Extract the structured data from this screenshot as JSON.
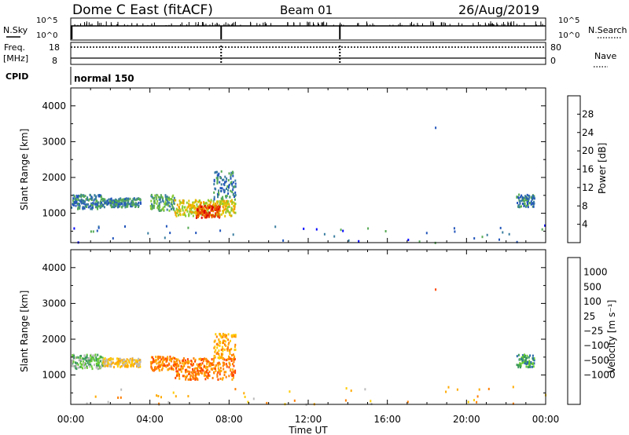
{
  "header": {
    "station": "Dome C East (fitACF)",
    "beam": "Beam 01",
    "date": "26/Aug/2019"
  },
  "status_panels": {
    "nsky_label": "N.Sky",
    "nsky_ticks": [
      "10^5",
      "10^0"
    ],
    "nsearch_label": "N.Search",
    "nsearch_ticks": [
      "10^5",
      "10^0"
    ],
    "freq_label_1": "Freq.",
    "freq_label_2": "[MHz]",
    "freq_ticks": [
      "18",
      "8"
    ],
    "nave_label": "Nave",
    "nave_ticks": [
      "80",
      "0"
    ],
    "cpid_label": "CPID",
    "cpid_value": "normal 150"
  },
  "colors": {
    "power": [
      "#0000ff",
      "#2255bb",
      "#3a7ea0",
      "#55aa55",
      "#88cc33",
      "#e6c200",
      "#f0a000",
      "#f07000",
      "#e84000",
      "#dd0000"
    ],
    "velocity": [
      "#ff0000",
      "#ff4400",
      "#ff7f00",
      "#ffaa00",
      "#ffcc00",
      "#bbbbbb",
      "#66cc33",
      "#3a9a5a",
      "#2a6aaa",
      "#0022ff"
    ]
  },
  "chart_data": [
    {
      "type": "heatmap",
      "name": "power",
      "ylabel": "Slant Range [km]",
      "yticks": [
        "4000",
        "3000",
        "2000",
        "1000"
      ],
      "ylim": [
        180,
        4500
      ],
      "xlim": [
        0,
        24
      ],
      "colorbar_label": "Power [dB]",
      "colorbar_ticks": [
        "28",
        "24",
        "20",
        "16",
        "12",
        "8",
        "4"
      ],
      "colorbar_range": [
        0,
        32
      ],
      "scatter_regions": [
        {
          "t0": 0.0,
          "t1": 1.6,
          "r0": 1150,
          "r1": 1550,
          "level": 2
        },
        {
          "t0": 1.6,
          "t1": 3.5,
          "r0": 1200,
          "r1": 1450,
          "level": 2
        },
        {
          "t0": 4.0,
          "t1": 5.2,
          "r0": 1100,
          "r1": 1550,
          "level": 3
        },
        {
          "t0": 5.2,
          "t1": 8.3,
          "r0": 950,
          "r1": 1400,
          "level": 5
        },
        {
          "t0": 6.3,
          "t1": 7.5,
          "r0": 900,
          "r1": 1250,
          "level": 8
        },
        {
          "t0": 7.2,
          "t1": 8.3,
          "r0": 1400,
          "r1": 2200,
          "level": 2
        },
        {
          "t0": 22.5,
          "t1": 23.4,
          "r0": 1200,
          "r1": 1550,
          "level": 2
        }
      ]
    },
    {
      "type": "heatmap",
      "name": "velocity",
      "ylabel": "Slant Range [km]",
      "yticks": [
        "4000",
        "3000",
        "2000",
        "1000"
      ],
      "ylim": [
        180,
        4500
      ],
      "xlim": [
        0,
        24
      ],
      "xticks": [
        "00:00",
        "04:00",
        "08:00",
        "12:00",
        "16:00",
        "20:00",
        "00:00"
      ],
      "xlabel": "Time UT",
      "colorbar_label": "Velocity [m s⁻¹]",
      "colorbar_ticks": [
        "1000",
        "500",
        "100",
        "25",
        "−25",
        "−100",
        "−500",
        "−1000"
      ],
      "scatter_regions": [
        {
          "t0": 0.0,
          "t1": 1.6,
          "r0": 1200,
          "r1": 1600,
          "level": 6
        },
        {
          "t0": 1.6,
          "t1": 3.5,
          "r0": 1250,
          "r1": 1500,
          "level": 4
        },
        {
          "t0": 4.0,
          "t1": 5.2,
          "r0": 1150,
          "r1": 1550,
          "level": 2
        },
        {
          "t0": 5.2,
          "t1": 8.3,
          "r0": 900,
          "r1": 1500,
          "level": 2
        },
        {
          "t0": 7.2,
          "t1": 8.3,
          "r0": 1500,
          "r1": 2200,
          "level": 3
        },
        {
          "t0": 22.5,
          "t1": 23.4,
          "r0": 1250,
          "r1": 1600,
          "level": 7
        }
      ]
    }
  ]
}
